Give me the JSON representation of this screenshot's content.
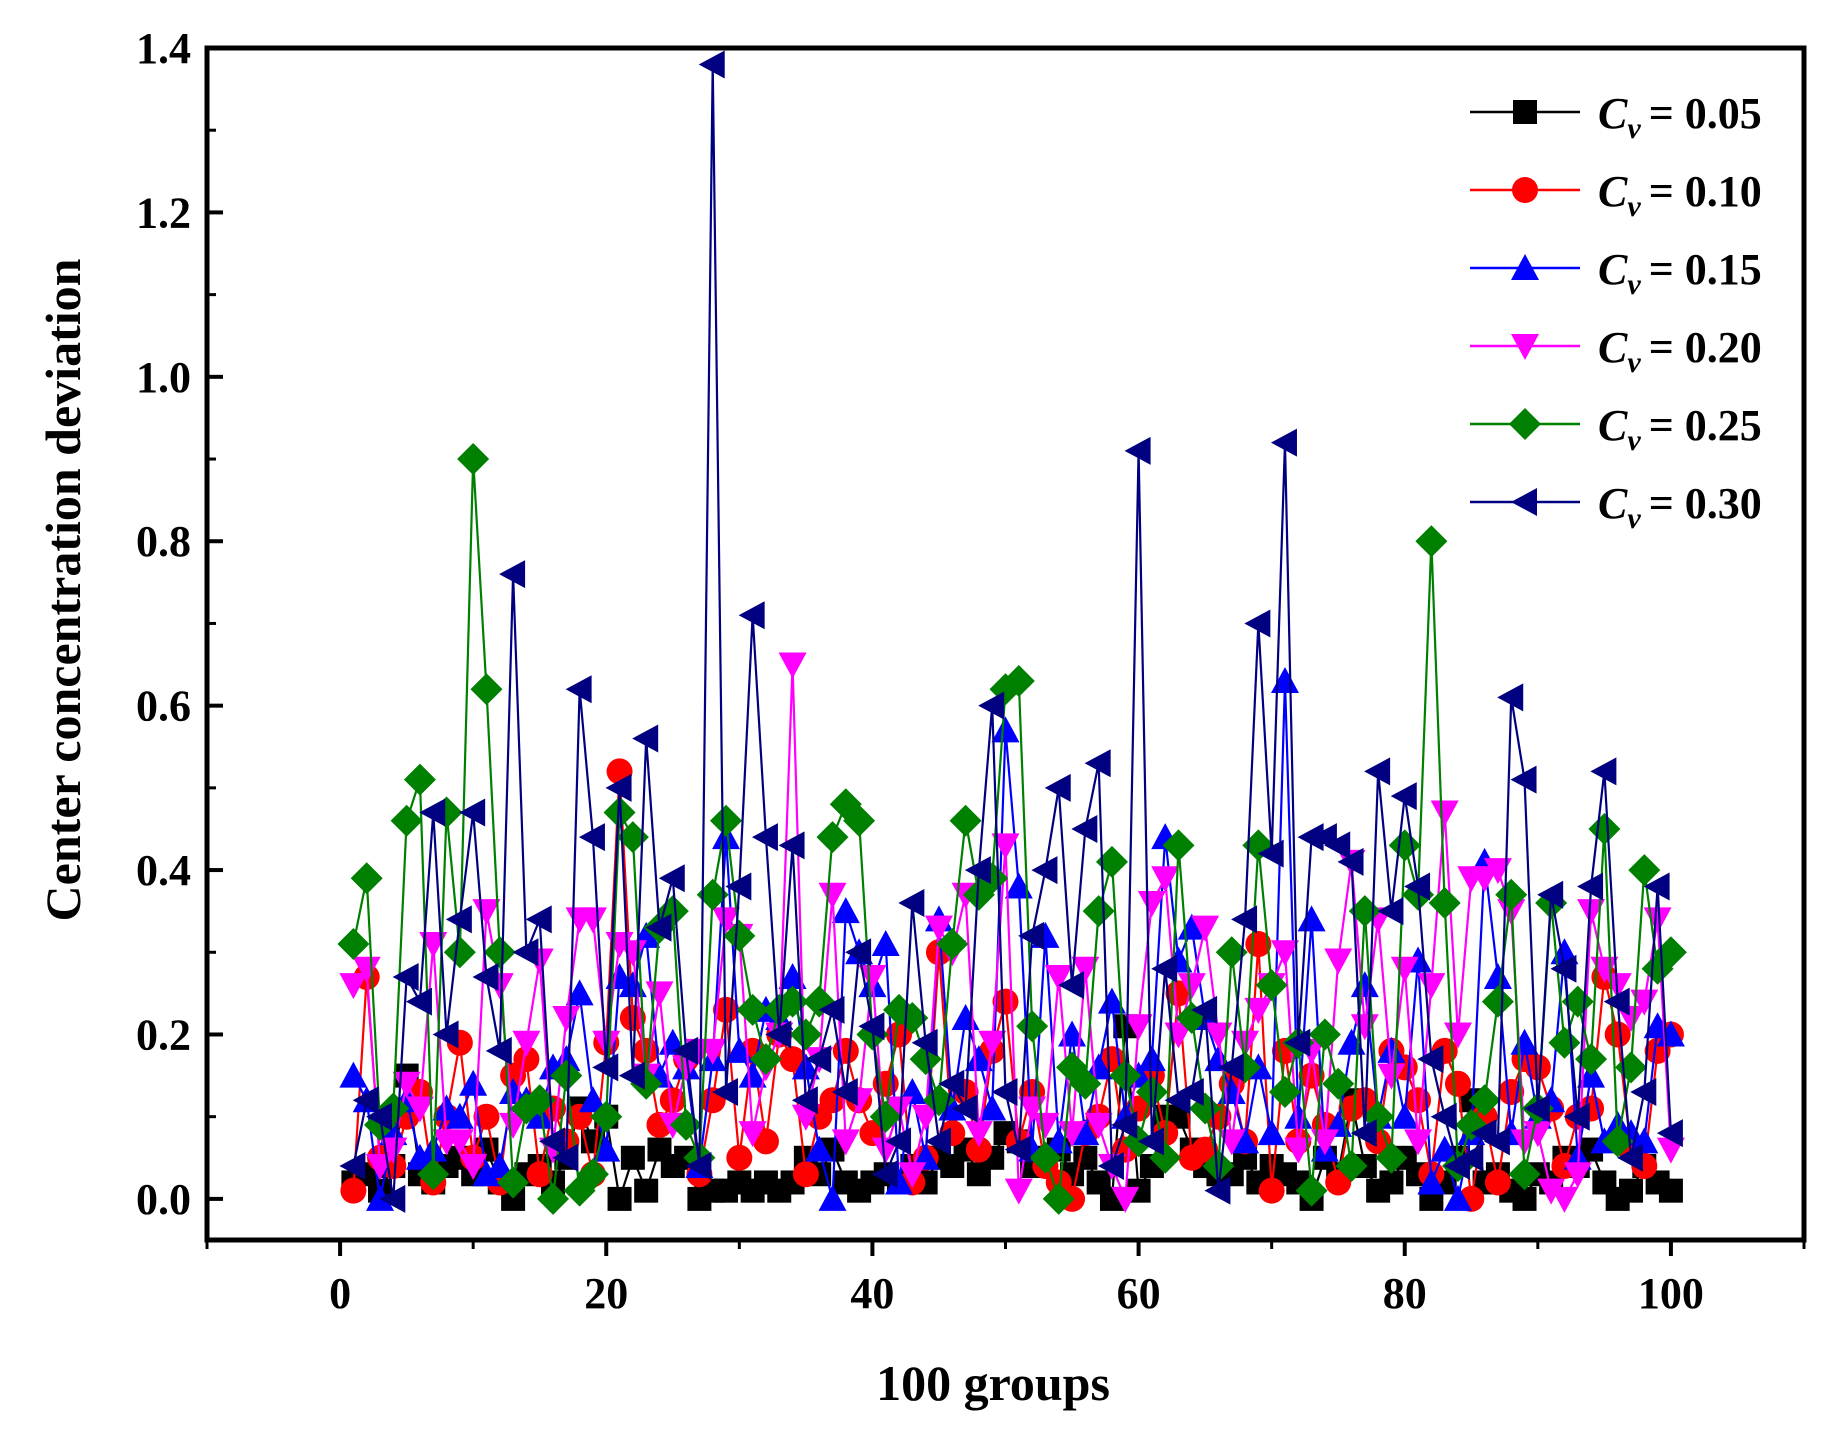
{
  "chart_data": {
    "type": "line",
    "title": "",
    "xlabel": "100 groups",
    "ylabel": "Center concentration deviation",
    "xlim": [
      -10,
      110
    ],
    "ylim": [
      -0.05,
      1.4
    ],
    "xticks": [
      0,
      20,
      40,
      60,
      80,
      100
    ],
    "xtick_labels": [
      "0",
      "20",
      "40",
      "60",
      "80",
      "100"
    ],
    "yticks": [
      0.0,
      0.2,
      0.4,
      0.6,
      0.8,
      1.0,
      1.2,
      1.4
    ],
    "ytick_labels": [
      "0.0",
      "0.2",
      "0.4",
      "0.6",
      "0.8",
      "1.0",
      "1.2",
      "1.4"
    ],
    "legend_position": "top-right",
    "legend_prefix": "C",
    "legend_subscript": "v",
    "x": [
      1,
      2,
      3,
      4,
      5,
      6,
      7,
      8,
      9,
      10,
      11,
      12,
      13,
      14,
      15,
      16,
      17,
      18,
      19,
      20,
      21,
      22,
      23,
      24,
      25,
      26,
      27,
      28,
      29,
      30,
      31,
      32,
      33,
      34,
      35,
      36,
      37,
      38,
      39,
      40,
      41,
      42,
      43,
      44,
      45,
      46,
      47,
      48,
      49,
      50,
      51,
      52,
      53,
      54,
      55,
      56,
      57,
      58,
      59,
      60,
      61,
      62,
      63,
      64,
      65,
      66,
      67,
      68,
      69,
      70,
      71,
      72,
      73,
      74,
      75,
      76,
      77,
      78,
      79,
      80,
      81,
      82,
      83,
      84,
      85,
      86,
      87,
      88,
      89,
      90,
      91,
      92,
      93,
      94,
      95,
      96,
      97,
      98,
      99,
      100
    ],
    "series": [
      {
        "name": "= 0.05",
        "color": "#000000",
        "marker": "square",
        "values": [
          0.02,
          0.03,
          0.01,
          0.04,
          0.15,
          0.03,
          0.02,
          0.04,
          0.05,
          0.03,
          0.06,
          0.02,
          0.0,
          0.03,
          0.04,
          0.02,
          0.05,
          0.11,
          0.07,
          0.1,
          0.0,
          0.05,
          0.01,
          0.06,
          0.04,
          0.05,
          0.0,
          0.01,
          0.01,
          0.02,
          0.01,
          0.02,
          0.01,
          0.02,
          0.05,
          0.03,
          0.06,
          0.02,
          0.01,
          0.02,
          0.03,
          0.02,
          0.04,
          0.02,
          0.05,
          0.04,
          0.06,
          0.03,
          0.05,
          0.08,
          0.07,
          0.04,
          0.05,
          0.06,
          0.03,
          0.05,
          0.02,
          0.0,
          0.21,
          0.01,
          0.04,
          0.1,
          0.1,
          0.06,
          0.04,
          0.03,
          0.03,
          0.05,
          0.02,
          0.04,
          0.03,
          0.02,
          0.0,
          0.05,
          0.03,
          0.12,
          0.04,
          0.01,
          0.02,
          0.05,
          0.03,
          0.0,
          0.02,
          0.05,
          0.12,
          0.02,
          0.03,
          0.01,
          0.0,
          0.03,
          0.02,
          0.05,
          0.04,
          0.06,
          0.02,
          0.0,
          0.01,
          0.04,
          0.02,
          0.01
        ]
      },
      {
        "name": "= 0.10",
        "color": "#ff0000",
        "marker": "circle",
        "values": [
          0.01,
          0.27,
          0.05,
          0.04,
          0.1,
          0.13,
          0.02,
          0.1,
          0.19,
          0.05,
          0.1,
          0.02,
          0.15,
          0.17,
          0.03,
          0.11,
          0.07,
          0.1,
          0.03,
          0.19,
          0.52,
          0.22,
          0.18,
          0.09,
          0.12,
          0.17,
          0.03,
          0.12,
          0.23,
          0.05,
          0.18,
          0.07,
          0.2,
          0.17,
          0.03,
          0.1,
          0.12,
          0.18,
          0.12,
          0.08,
          0.14,
          0.2,
          0.02,
          0.05,
          0.3,
          0.08,
          0.13,
          0.06,
          0.18,
          0.24,
          0.07,
          0.13,
          0.04,
          0.02,
          0.0,
          0.08,
          0.1,
          0.17,
          0.06,
          0.11,
          0.15,
          0.08,
          0.25,
          0.05,
          0.06,
          0.1,
          0.14,
          0.07,
          0.31,
          0.01,
          0.18,
          0.07,
          0.15,
          0.09,
          0.02,
          0.11,
          0.12,
          0.07,
          0.18,
          0.16,
          0.12,
          0.03,
          0.18,
          0.14,
          0.0,
          0.1,
          0.02,
          0.13,
          0.17,
          0.16,
          0.11,
          0.04,
          0.1,
          0.11,
          0.27,
          0.2,
          0.06,
          0.04,
          0.18,
          0.2
        ]
      },
      {
        "name": "= 0.15",
        "color": "#0000ff",
        "marker": "triangle-up",
        "values": [
          0.15,
          0.12,
          0.0,
          0.08,
          0.12,
          0.05,
          0.06,
          0.11,
          0.1,
          0.14,
          0.03,
          0.04,
          0.13,
          0.12,
          0.1,
          0.16,
          0.17,
          0.25,
          0.12,
          0.06,
          0.27,
          0.26,
          0.32,
          0.15,
          0.19,
          0.16,
          0.04,
          0.17,
          0.44,
          0.18,
          0.15,
          0.23,
          0.22,
          0.27,
          0.16,
          0.06,
          0.0,
          0.35,
          0.3,
          0.26,
          0.31,
          0.02,
          0.13,
          0.05,
          0.34,
          0.11,
          0.22,
          0.17,
          0.11,
          0.57,
          0.38,
          0.06,
          0.32,
          0.07,
          0.2,
          0.08,
          0.16,
          0.24,
          0.1,
          0.15,
          0.17,
          0.44,
          0.29,
          0.33,
          0.22,
          0.17,
          0.13,
          0.07,
          0.16,
          0.08,
          0.63,
          0.1,
          0.34,
          0.06,
          0.09,
          0.19,
          0.26,
          0.1,
          0.18,
          0.1,
          0.29,
          0.02,
          0.06,
          0.0,
          0.08,
          0.41,
          0.27,
          0.08,
          0.19,
          0.1,
          0.12,
          0.3,
          0.05,
          0.15,
          0.07,
          0.09,
          0.08,
          0.07,
          0.21,
          0.2
        ]
      },
      {
        "name": "= 0.20",
        "color": "#ff00ff",
        "marker": "triangle-down",
        "values": [
          0.26,
          0.28,
          0.04,
          0.06,
          0.14,
          0.11,
          0.31,
          0.07,
          0.07,
          0.04,
          0.35,
          0.26,
          0.09,
          0.19,
          0.29,
          0.06,
          0.22,
          0.34,
          0.34,
          0.19,
          0.31,
          0.3,
          0.15,
          0.25,
          0.09,
          0.16,
          0.18,
          0.18,
          0.34,
          0.32,
          0.08,
          0.16,
          0.2,
          0.65,
          0.1,
          0.17,
          0.37,
          0.07,
          0.12,
          0.27,
          0.06,
          0.11,
          0.03,
          0.1,
          0.33,
          0.3,
          0.37,
          0.08,
          0.19,
          0.43,
          0.01,
          0.11,
          0.09,
          0.27,
          0.08,
          0.28,
          0.09,
          0.04,
          0.0,
          0.21,
          0.36,
          0.39,
          0.2,
          0.26,
          0.33,
          0.2,
          0.07,
          0.19,
          0.23,
          0.26,
          0.3,
          0.06,
          0.18,
          0.07,
          0.29,
          0.41,
          0.21,
          0.34,
          0.15,
          0.28,
          0.07,
          0.26,
          0.47,
          0.2,
          0.39,
          0.39,
          0.4,
          0.35,
          0.07,
          0.08,
          0.01,
          0.0,
          0.03,
          0.35,
          0.28,
          0.26,
          0.22,
          0.24,
          0.34,
          0.06
        ]
      },
      {
        "name": "= 0.25",
        "color": "#008000",
        "marker": "diamond",
        "values": [
          0.31,
          0.39,
          0.09,
          0.11,
          0.46,
          0.51,
          0.03,
          0.47,
          0.3,
          0.9,
          0.62,
          0.3,
          0.02,
          0.11,
          0.12,
          0.0,
          0.15,
          0.01,
          0.03,
          0.1,
          0.47,
          0.44,
          0.14,
          0.33,
          0.35,
          0.09,
          0.05,
          0.37,
          0.46,
          0.32,
          0.23,
          0.17,
          0.23,
          0.24,
          0.2,
          0.24,
          0.44,
          0.48,
          0.46,
          0.2,
          0.1,
          0.23,
          0.22,
          0.17,
          0.12,
          0.31,
          0.46,
          0.37,
          0.39,
          0.62,
          0.63,
          0.21,
          0.05,
          0.0,
          0.16,
          0.14,
          0.35,
          0.41,
          0.15,
          0.07,
          0.13,
          0.05,
          0.43,
          0.22,
          0.11,
          0.04,
          0.3,
          0.16,
          0.43,
          0.26,
          0.13,
          0.19,
          0.01,
          0.2,
          0.14,
          0.04,
          0.35,
          0.1,
          0.05,
          0.43,
          0.37,
          0.8,
          0.36,
          0.04,
          0.09,
          0.12,
          0.24,
          0.37,
          0.03,
          0.11,
          0.36,
          0.19,
          0.24,
          0.17,
          0.45,
          0.07,
          0.16,
          0.4,
          0.28,
          0.3
        ]
      },
      {
        "name": "= 0.30",
        "color": "#000080",
        "marker": "triangle-left",
        "values": [
          0.04,
          0.12,
          0.1,
          0.0,
          0.27,
          0.24,
          0.47,
          0.2,
          0.34,
          0.47,
          0.27,
          0.18,
          0.76,
          0.3,
          0.34,
          0.07,
          0.05,
          0.62,
          0.44,
          0.16,
          0.5,
          0.15,
          0.56,
          0.33,
          0.39,
          0.18,
          0.04,
          1.38,
          0.13,
          0.38,
          0.71,
          0.44,
          0.2,
          0.43,
          0.12,
          0.17,
          0.23,
          0.13,
          0.3,
          0.21,
          0.03,
          0.07,
          0.36,
          0.19,
          0.07,
          0.14,
          0.11,
          0.4,
          0.6,
          0.13,
          0.06,
          0.32,
          0.4,
          0.5,
          0.26,
          0.45,
          0.53,
          0.04,
          0.09,
          0.91,
          0.07,
          0.28,
          0.12,
          0.13,
          0.23,
          0.01,
          0.16,
          0.34,
          0.7,
          0.42,
          0.92,
          0.19,
          0.44,
          0.44,
          0.43,
          0.41,
          0.08,
          0.52,
          0.35,
          0.49,
          0.38,
          0.17,
          0.1,
          0.04,
          0.05,
          0.08,
          0.07,
          0.61,
          0.51,
          0.11,
          0.37,
          0.28,
          0.1,
          0.38,
          0.52,
          0.24,
          0.05,
          0.13,
          0.38,
          0.08
        ]
      }
    ]
  }
}
